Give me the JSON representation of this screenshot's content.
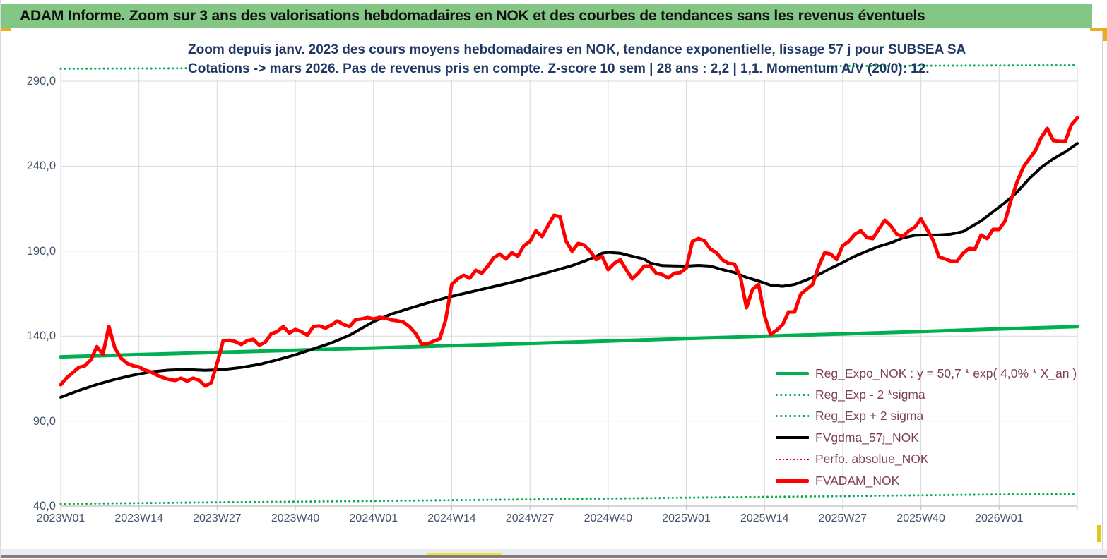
{
  "window": {
    "header_title": "ADAM Informe. Zoom sur 3 ans des valorisations hebdomadaires en NOK et des courbes de tendances sans les revenus éventuels"
  },
  "chart": {
    "title_line1": "Zoom depuis janv. 2023 des cours moyens hebdomadaires en NOK, tendance exponentielle, lissage 57 j pour SUBSEA SA",
    "title_line2": "Cotations -> mars 2026. Pas de revenus pris en compte. Z-score 10 sem | 28 ans : 2,2 | 1,1. Momentum A/V (20/0): 12."
  },
  "legend": {
    "items": [
      {
        "label": "Reg_Expo_NOK : y = 50,7 * exp( 4,0% *  X_an )"
      },
      {
        "label": "Reg_Exp - 2 *sigma"
      },
      {
        "label": "Reg_Exp + 2 sigma"
      },
      {
        "label": "FVgdma_57j_NOK"
      },
      {
        "label": "Perfo. absolue_NOK"
      },
      {
        "label": "FVADAM_NOK"
      }
    ]
  },
  "colors": {
    "header_green": "#84c784",
    "series_green": "#00b050",
    "series_red": "#fe0000",
    "series_black": "#000000",
    "gridline": "#d9d9d9",
    "axis_line": "#bfbfbf",
    "axis_label": "#44546a",
    "title_navy": "#1f3864",
    "legend_text": "#7d4252",
    "gold_accent": "#e7ae1d"
  },
  "chart_data": {
    "type": "line",
    "title": "Zoom depuis janv. 2023 des cours moyens hebdomadaires en NOK, tendance exponentielle, lissage 57 j pour SUBSEA SA — Cotations -> mars 2026",
    "x_axis": {
      "unit": "ISO week index from 2023W01",
      "start_label": "2023W01",
      "end": "fin mars 2026 (semaine 169)",
      "tick_weeks": [
        0,
        13,
        26,
        39,
        52,
        65,
        78,
        91,
        104,
        117,
        130,
        143,
        156
      ],
      "tick_labels": [
        "2023W01",
        "2023W14",
        "2023W27",
        "2023W40",
        "2024W01",
        "2024W14",
        "2024W27",
        "2024W40",
        "2025W01",
        "2025W14",
        "2025W27",
        "2025W40",
        "2026W01"
      ]
    },
    "y_axis": {
      "min": 40,
      "max": 300,
      "grid_step": 50,
      "tick_values": [
        290,
        240,
        190,
        140,
        90,
        40
      ],
      "tick_labels": [
        "290,0",
        "240,0",
        "190,0",
        "140,0",
        "90,0",
        "40,0"
      ]
    },
    "grid": true,
    "legend_position": "inside lower right",
    "series": [
      {
        "name": "Reg_Expo_NOK",
        "equation": "y = 50,7 * exp( 4,0% * X_an )",
        "color": "#00b050",
        "style": "solid",
        "width": 5,
        "points": [
          [
            0,
            127.8
          ],
          [
            13,
            129.1
          ],
          [
            26,
            130.4
          ],
          [
            39,
            131.7
          ],
          [
            52,
            133.0
          ],
          [
            65,
            134.4
          ],
          [
            78,
            135.7
          ],
          [
            91,
            137.1
          ],
          [
            104,
            138.5
          ],
          [
            117,
            139.9
          ],
          [
            130,
            141.3
          ],
          [
            143,
            142.7
          ],
          [
            156,
            144.2
          ],
          [
            169,
            145.6
          ]
        ]
      },
      {
        "name": "Reg_Exp - 2 *sigma",
        "color": "#00b050",
        "style": "dotted",
        "width": 3,
        "points": [
          [
            0,
            41.3
          ],
          [
            26,
            42.2
          ],
          [
            52,
            43.0
          ],
          [
            78,
            43.9
          ],
          [
            104,
            44.9
          ],
          [
            130,
            45.8
          ],
          [
            156,
            46.8
          ],
          [
            169,
            47.0
          ]
        ]
      },
      {
        "name": "Reg_Exp + 2 sigma",
        "color": "#00b050",
        "style": "dotted",
        "width": 3,
        "points": [
          [
            0,
            297.3
          ],
          [
            85,
            298.4
          ],
          [
            169,
            299.4
          ]
        ]
      },
      {
        "name": "FVgdma_57j_NOK",
        "color": "#000000",
        "style": "solid",
        "width": 4,
        "points": [
          [
            0,
            104
          ],
          [
            3,
            108
          ],
          [
            6,
            111.5
          ],
          [
            9,
            114.5
          ],
          [
            12,
            117
          ],
          [
            15,
            119
          ],
          [
            18,
            120
          ],
          [
            21,
            120.3
          ],
          [
            24,
            119.8
          ],
          [
            27,
            120.3
          ],
          [
            30,
            121.5
          ],
          [
            33,
            123.3
          ],
          [
            36,
            126
          ],
          [
            39,
            129
          ],
          [
            42,
            132.5
          ],
          [
            45,
            136
          ],
          [
            48,
            140.5
          ],
          [
            50,
            144.5
          ],
          [
            52,
            148.5
          ],
          [
            55,
            153
          ],
          [
            58,
            156.3
          ],
          [
            61,
            159.5
          ],
          [
            64,
            162.5
          ],
          [
            67,
            165
          ],
          [
            70,
            167.5
          ],
          [
            73,
            170
          ],
          [
            76,
            172.5
          ],
          [
            79,
            175.5
          ],
          [
            82,
            178.5
          ],
          [
            85,
            181.5
          ],
          [
            87,
            184
          ],
          [
            89,
            186.8
          ],
          [
            90,
            188.8
          ],
          [
            91,
            189.3
          ],
          [
            93,
            188.8
          ],
          [
            95,
            187
          ],
          [
            97,
            185.3
          ],
          [
            98,
            183
          ],
          [
            100,
            181.5
          ],
          [
            102,
            181.3
          ],
          [
            104,
            181.2
          ],
          [
            106,
            181.6
          ],
          [
            108,
            181.2
          ],
          [
            110,
            179.1
          ],
          [
            112,
            177.4
          ],
          [
            114,
            174.5
          ],
          [
            116,
            172.4
          ],
          [
            118,
            170
          ],
          [
            120,
            169.3
          ],
          [
            122,
            170.4
          ],
          [
            124,
            173
          ],
          [
            126,
            176.2
          ],
          [
            128,
            179.9
          ],
          [
            130,
            183.3
          ],
          [
            132,
            187
          ],
          [
            134,
            190
          ],
          [
            136,
            192.8
          ],
          [
            138,
            194.9
          ],
          [
            140,
            197.8
          ],
          [
            142,
            199.3
          ],
          [
            144,
            199.5
          ],
          [
            146,
            199.5
          ],
          [
            148,
            200
          ],
          [
            150,
            201.5
          ],
          [
            151,
            203.6
          ],
          [
            153,
            207.8
          ],
          [
            155,
            213.2
          ],
          [
            157,
            218.6
          ],
          [
            159,
            224.8
          ],
          [
            161,
            232.7
          ],
          [
            163,
            239.3
          ],
          [
            165,
            244.3
          ],
          [
            167,
            248.4
          ],
          [
            169,
            253.4
          ]
        ]
      },
      {
        "name": "Perfo. absolue_NOK",
        "color": "#e00000",
        "style": "dotted",
        "width": 2,
        "points": []
      },
      {
        "name": "FVADAM_NOK",
        "color": "#fe0000",
        "style": "solid",
        "width": 5,
        "points": [
          [
            0,
            111.4
          ],
          [
            1,
            115.5
          ],
          [
            2,
            118.5
          ],
          [
            3,
            121.5
          ],
          [
            4,
            122.5
          ],
          [
            5,
            126
          ],
          [
            6,
            133.8
          ],
          [
            7,
            129.2
          ],
          [
            8,
            145.6
          ],
          [
            9,
            133
          ],
          [
            10,
            127.1
          ],
          [
            11,
            124
          ],
          [
            12,
            122.5
          ],
          [
            13,
            121.8
          ],
          [
            14,
            120
          ],
          [
            15,
            118.9
          ],
          [
            16,
            117
          ],
          [
            17,
            115.6
          ],
          [
            18,
            114.5
          ],
          [
            19,
            113.9
          ],
          [
            20,
            115.2
          ],
          [
            21,
            113.5
          ],
          [
            22,
            115.2
          ],
          [
            23,
            114
          ],
          [
            24,
            110.6
          ],
          [
            25,
            112.5
          ],
          [
            26,
            124
          ],
          [
            27,
            137.3
          ],
          [
            28,
            137.5
          ],
          [
            29,
            136.8
          ],
          [
            30,
            135.1
          ],
          [
            31,
            137.3
          ],
          [
            32,
            138.1
          ],
          [
            33,
            134.7
          ],
          [
            34,
            136.4
          ],
          [
            35,
            141.4
          ],
          [
            36,
            142.6
          ],
          [
            37,
            145.6
          ],
          [
            38,
            141.8
          ],
          [
            39,
            143.9
          ],
          [
            40,
            142.6
          ],
          [
            41,
            140.5
          ],
          [
            42,
            145.6
          ],
          [
            43,
            146
          ],
          [
            44,
            144.7
          ],
          [
            45,
            146.5
          ],
          [
            46,
            148.9
          ],
          [
            47,
            146.8
          ],
          [
            48,
            145.6
          ],
          [
            49,
            149.6
          ],
          [
            50,
            150.1
          ],
          [
            51,
            150.9
          ],
          [
            52,
            150.1
          ],
          [
            53,
            151
          ],
          [
            54,
            150.5
          ],
          [
            55,
            149.5
          ],
          [
            56,
            149
          ],
          [
            57,
            148.2
          ],
          [
            58,
            145.5
          ],
          [
            59,
            141.5
          ],
          [
            60,
            135.3
          ],
          [
            61,
            135.5
          ],
          [
            62,
            137
          ],
          [
            63,
            138.4
          ],
          [
            64,
            149.6
          ],
          [
            65,
            170.4
          ],
          [
            66,
            173.7
          ],
          [
            67,
            175.8
          ],
          [
            68,
            174
          ],
          [
            69,
            178.7
          ],
          [
            70,
            177
          ],
          [
            71,
            181.2
          ],
          [
            72,
            186.2
          ],
          [
            73,
            188.3
          ],
          [
            74,
            185.4
          ],
          [
            75,
            189.1
          ],
          [
            76,
            187
          ],
          [
            77,
            193.2
          ],
          [
            78,
            195.7
          ],
          [
            79,
            202
          ],
          [
            80,
            198.6
          ],
          [
            81,
            204.9
          ],
          [
            82,
            211.1
          ],
          [
            83,
            210.3
          ],
          [
            84,
            196
          ],
          [
            85,
            190
          ],
          [
            86,
            194.5
          ],
          [
            87,
            193.7
          ],
          [
            88,
            190
          ],
          [
            89,
            185
          ],
          [
            90,
            187
          ],
          [
            91,
            179.1
          ],
          [
            92,
            182.8
          ],
          [
            93,
            184.9
          ],
          [
            94,
            179.1
          ],
          [
            95,
            173.7
          ],
          [
            96,
            177
          ],
          [
            97,
            181.2
          ],
          [
            98,
            181.2
          ],
          [
            99,
            177
          ],
          [
            100,
            176.2
          ],
          [
            101,
            174.1
          ],
          [
            102,
            177
          ],
          [
            103,
            177.4
          ],
          [
            104,
            180
          ],
          [
            105,
            195.7
          ],
          [
            106,
            197.4
          ],
          [
            107,
            196.1
          ],
          [
            108,
            191.2
          ],
          [
            109,
            189.1
          ],
          [
            110,
            184.9
          ],
          [
            111,
            182.8
          ],
          [
            112,
            182.4
          ],
          [
            113,
            174.5
          ],
          [
            114,
            156.7
          ],
          [
            115,
            167.5
          ],
          [
            116,
            170.4
          ],
          [
            117,
            152.1
          ],
          [
            118,
            141
          ],
          [
            119,
            143.4
          ],
          [
            120,
            146.7
          ],
          [
            121,
            154.2
          ],
          [
            122,
            154.2
          ],
          [
            123,
            164.6
          ],
          [
            124,
            167.5
          ],
          [
            125,
            170.4
          ],
          [
            126,
            181.2
          ],
          [
            127,
            189.1
          ],
          [
            128,
            188.3
          ],
          [
            129,
            185
          ],
          [
            130,
            193.2
          ],
          [
            131,
            195.7
          ],
          [
            132,
            199.9
          ],
          [
            133,
            202
          ],
          [
            134,
            198
          ],
          [
            135,
            197.4
          ],
          [
            136,
            203
          ],
          [
            137,
            208.2
          ],
          [
            138,
            204.9
          ],
          [
            139,
            199.9
          ],
          [
            140,
            198.6
          ],
          [
            141,
            202
          ],
          [
            142,
            204.1
          ],
          [
            143,
            209
          ],
          [
            144,
            203
          ],
          [
            145,
            196.6
          ],
          [
            146,
            186.6
          ],
          [
            147,
            185.4
          ],
          [
            148,
            184.1
          ],
          [
            149,
            184.1
          ],
          [
            150,
            188.7
          ],
          [
            151,
            191.6
          ],
          [
            152,
            191.2
          ],
          [
            153,
            199.5
          ],
          [
            154,
            197.4
          ],
          [
            155,
            202.8
          ],
          [
            156,
            202.8
          ],
          [
            157,
            207.8
          ],
          [
            158,
            220.2
          ],
          [
            159,
            231
          ],
          [
            160,
            239.3
          ],
          [
            161,
            244.3
          ],
          [
            162,
            249
          ],
          [
            163,
            256.8
          ],
          [
            164,
            262.2
          ],
          [
            165,
            255.1
          ],
          [
            166,
            254.7
          ],
          [
            167,
            254.7
          ],
          [
            168,
            264.3
          ],
          [
            169,
            268.4
          ]
        ]
      }
    ]
  }
}
